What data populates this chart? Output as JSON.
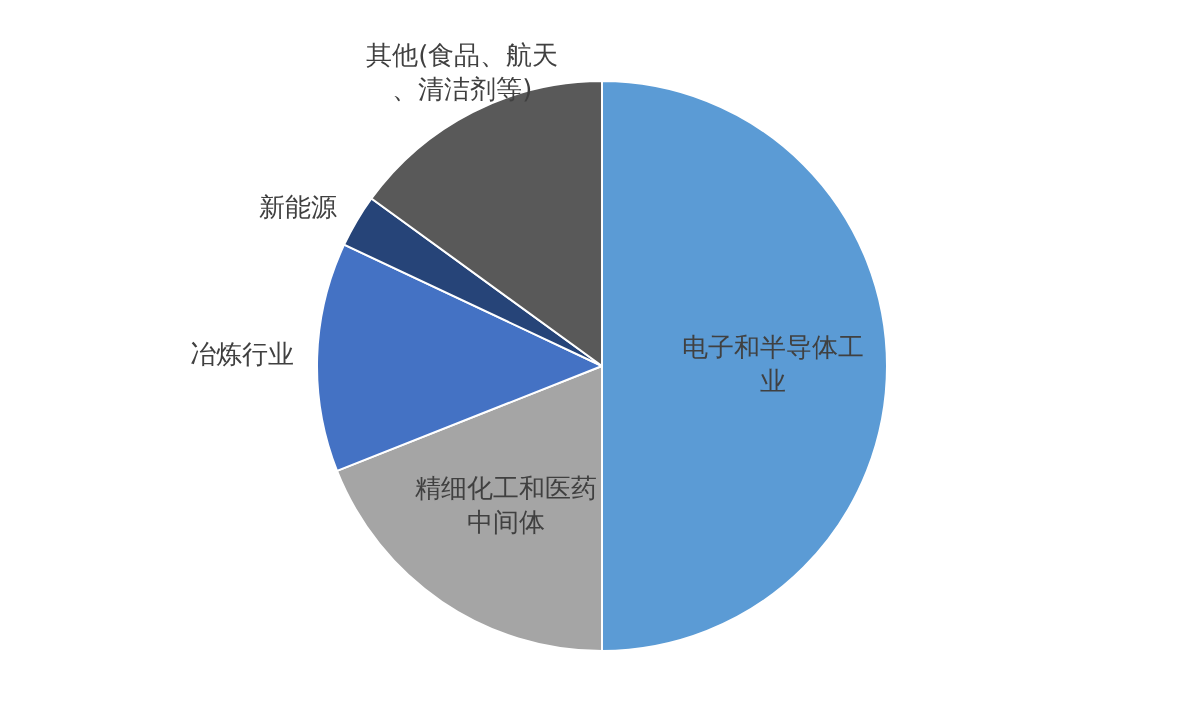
{
  "chart_data": {
    "type": "pie",
    "categories": [
      "电子和半导体工业",
      "精细化工和医药中间体",
      "冶炼行业",
      "新能源",
      "其他(食品、航天、清洁剂等)"
    ],
    "values": [
      50,
      19,
      13,
      3,
      15
    ],
    "colors": [
      "#5b9bd5",
      "#a5a5a5",
      "#4472c4",
      "#264478",
      "#595959"
    ],
    "legend": false
  }
}
